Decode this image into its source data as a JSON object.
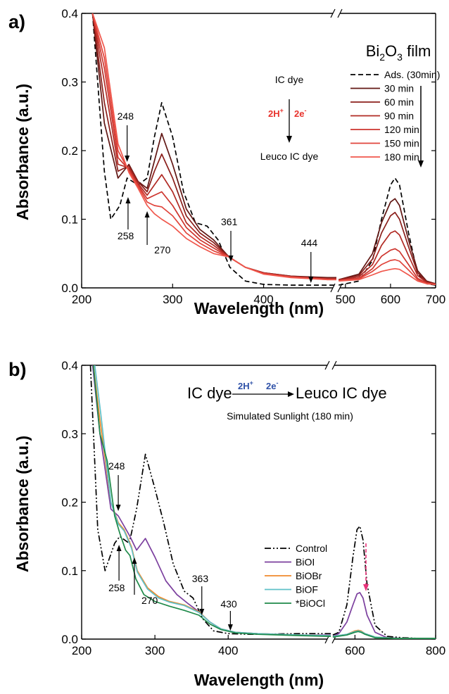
{
  "figure": [
    {
      "panel": "a)",
      "sample_label": {
        "main": "Bi",
        "sub1": "2",
        "mid": "O",
        "sub2": "3",
        "end": " film"
      },
      "reaction": {
        "top": "IC dye",
        "reagent_h": "2H",
        "reagent_h_sup": "+",
        "reagent_e": "2e",
        "reagent_e_sup": "-",
        "bottom": "Leuco IC dye",
        "color": "#e8322c"
      },
      "annotations": [
        {
          "text": "248",
          "x": 250
        },
        {
          "text": "258",
          "x": 251
        },
        {
          "text": "270",
          "x": 272
        },
        {
          "text": "361",
          "x": 364
        },
        {
          "text": "444",
          "x": 452
        }
      ]
    },
    {
      "panel": "b)",
      "reaction": {
        "left": "IC dye",
        "reagent_h": "2H",
        "reagent_h_sup": "+",
        "reagent_e": "2e",
        "reagent_e_sup": "-",
        "right": "Leuco IC dye",
        "color": "#2f52a8"
      },
      "condition": "Simulated Sunlight (180 min)",
      "annotations": [
        {
          "text": "248",
          "x": 250
        },
        {
          "text": "258",
          "x": 251
        },
        {
          "text": "270",
          "x": 272
        },
        {
          "text": "363",
          "x": 364
        },
        {
          "text": "430",
          "x": 403
        }
      ]
    }
  ],
  "chart_data": [
    {
      "type": "line",
      "xlabel": "Wavelength (nm)",
      "ylabel": "Absorbance (a.u.)",
      "xlim": [
        200,
        700
      ],
      "x_break": [
        480,
        480
      ],
      "ylim": [
        0,
        0.4
      ],
      "xticks": [
        "200",
        "300",
        "400",
        "500",
        "600",
        "700"
      ],
      "yticks": [
        "0.0",
        "0.1",
        "0.2",
        "0.3",
        "0.4"
      ],
      "legend": "top-right",
      "series": [
        {
          "name": "Ads. (30min)",
          "color": "#000000",
          "dash": "dashed",
          "x": [
            212,
            225,
            232,
            242,
            250,
            262,
            272,
            280,
            288,
            300,
            312,
            325,
            338,
            350,
            363,
            380,
            400,
            430,
            460,
            480,
            485,
            530,
            560,
            580,
            600,
            610,
            620,
            640,
            660,
            680,
            700
          ],
          "y": [
            0.4,
            0.17,
            0.1,
            0.12,
            0.16,
            0.15,
            0.16,
            0.22,
            0.27,
            0.22,
            0.14,
            0.095,
            0.09,
            0.07,
            0.03,
            0.01,
            0.005,
            0.004,
            0.004,
            0.004,
            0.004,
            0.01,
            0.04,
            0.1,
            0.15,
            0.16,
            0.15,
            0.08,
            0.02,
            0.006,
            0.004
          ]
        },
        {
          "name": "30 min",
          "color": "#611714",
          "x": [
            212,
            225,
            240,
            252,
            262,
            272,
            280,
            288,
            300,
            315,
            330,
            345,
            362,
            380,
            400,
            430,
            470,
            480,
            485,
            530,
            560,
            580,
            600,
            610,
            620,
            640,
            660,
            680,
            700
          ],
          "y": [
            0.4,
            0.24,
            0.16,
            0.18,
            0.155,
            0.145,
            0.185,
            0.225,
            0.18,
            0.115,
            0.085,
            0.07,
            0.045,
            0.03,
            0.022,
            0.017,
            0.015,
            0.015,
            0.012,
            0.02,
            0.05,
            0.095,
            0.125,
            0.13,
            0.12,
            0.07,
            0.025,
            0.01,
            0.006
          ]
        },
        {
          "name": "60 min",
          "color": "#8b1f1b",
          "x": [
            212,
            225,
            240,
            252,
            262,
            272,
            280,
            288,
            300,
            315,
            330,
            345,
            362,
            380,
            400,
            430,
            470,
            480,
            485,
            530,
            560,
            580,
            600,
            610,
            620,
            640,
            660,
            680,
            700
          ],
          "y": [
            0.4,
            0.27,
            0.17,
            0.178,
            0.155,
            0.14,
            0.17,
            0.195,
            0.16,
            0.105,
            0.08,
            0.066,
            0.045,
            0.03,
            0.022,
            0.017,
            0.014,
            0.014,
            0.012,
            0.018,
            0.042,
            0.08,
            0.105,
            0.11,
            0.1,
            0.06,
            0.022,
            0.009,
            0.006
          ]
        },
        {
          "name": "90 min",
          "color": "#b12a24",
          "x": [
            212,
            225,
            240,
            252,
            262,
            272,
            280,
            288,
            300,
            315,
            330,
            345,
            362,
            380,
            400,
            430,
            470,
            480,
            485,
            530,
            560,
            580,
            600,
            610,
            620,
            640,
            660,
            680,
            700
          ],
          "y": [
            0.4,
            0.3,
            0.18,
            0.175,
            0.152,
            0.135,
            0.15,
            0.165,
            0.14,
            0.095,
            0.075,
            0.062,
            0.045,
            0.03,
            0.022,
            0.016,
            0.013,
            0.013,
            0.011,
            0.016,
            0.034,
            0.062,
            0.08,
            0.083,
            0.077,
            0.047,
            0.018,
            0.008,
            0.005
          ]
        },
        {
          "name": "120 min",
          "color": "#cd352e",
          "x": [
            212,
            225,
            240,
            252,
            262,
            272,
            280,
            288,
            300,
            315,
            330,
            345,
            362,
            380,
            400,
            430,
            470,
            480,
            485,
            530,
            560,
            580,
            600,
            610,
            620,
            640,
            660,
            680,
            700
          ],
          "y": [
            0.4,
            0.32,
            0.19,
            0.172,
            0.15,
            0.13,
            0.135,
            0.14,
            0.12,
            0.088,
            0.07,
            0.058,
            0.045,
            0.03,
            0.021,
            0.016,
            0.013,
            0.013,
            0.011,
            0.014,
            0.028,
            0.046,
            0.055,
            0.057,
            0.053,
            0.034,
            0.014,
            0.007,
            0.005
          ]
        },
        {
          "name": "150 min",
          "color": "#e0443b",
          "x": [
            212,
            225,
            240,
            252,
            262,
            272,
            280,
            288,
            300,
            315,
            330,
            345,
            362,
            380,
            400,
            430,
            470,
            480,
            485,
            530,
            560,
            580,
            600,
            610,
            620,
            640,
            660,
            680,
            700
          ],
          "y": [
            0.4,
            0.335,
            0.2,
            0.17,
            0.148,
            0.125,
            0.12,
            0.118,
            0.105,
            0.08,
            0.065,
            0.054,
            0.045,
            0.03,
            0.021,
            0.016,
            0.012,
            0.012,
            0.011,
            0.013,
            0.024,
            0.034,
            0.04,
            0.041,
            0.039,
            0.026,
            0.012,
            0.006,
            0.005
          ]
        },
        {
          "name": "180 min",
          "color": "#f0574c",
          "x": [
            212,
            225,
            240,
            252,
            262,
            272,
            280,
            288,
            300,
            315,
            330,
            345,
            362,
            380,
            400,
            430,
            470,
            480,
            485,
            530,
            560,
            580,
            600,
            610,
            620,
            640,
            660,
            680,
            700
          ],
          "y": [
            0.4,
            0.35,
            0.21,
            0.168,
            0.145,
            0.12,
            0.108,
            0.1,
            0.09,
            0.072,
            0.06,
            0.05,
            0.045,
            0.03,
            0.02,
            0.015,
            0.012,
            0.012,
            0.01,
            0.012,
            0.019,
            0.024,
            0.027,
            0.028,
            0.027,
            0.019,
            0.01,
            0.006,
            0.005
          ]
        }
      ]
    },
    {
      "type": "line",
      "xlabel": "Wavelength (nm)",
      "ylabel": "Absorbance (a.u.)",
      "xlim": [
        200,
        800
      ],
      "x_break": [
        540,
        540
      ],
      "ylim": [
        0,
        0.4
      ],
      "xticks": [
        "200",
        "300",
        "400",
        "600",
        "800"
      ],
      "yticks": [
        "0.0",
        "0.1",
        "0.2",
        "0.3",
        "0.4"
      ],
      "legend": "bottom-right",
      "series": [
        {
          "name": "Control",
          "color": "#000000",
          "dash": "dashdotdot",
          "x": [
            212,
            222,
            232,
            245,
            252,
            265,
            275,
            287,
            300,
            312,
            325,
            340,
            352,
            365,
            380,
            400,
            430,
            500,
            540,
            545,
            560,
            580,
            595,
            605,
            612,
            620,
            630,
            650,
            680,
            720,
            760,
            800
          ],
          "y": [
            0.4,
            0.16,
            0.1,
            0.14,
            0.15,
            0.14,
            0.19,
            0.27,
            0.22,
            0.17,
            0.11,
            0.07,
            0.06,
            0.03,
            0.012,
            0.008,
            0.007,
            0.008,
            0.008,
            0.006,
            0.01,
            0.05,
            0.12,
            0.16,
            0.165,
            0.145,
            0.08,
            0.02,
            0.004,
            0.002,
            0.001,
            0.001
          ]
        },
        {
          "name": "BiOI",
          "color": "#7b3f9e",
          "x": [
            215,
            225,
            240,
            250,
            258,
            266,
            275,
            287,
            300,
            315,
            330,
            345,
            360,
            375,
            390,
            410,
            440,
            500,
            540,
            545,
            560,
            580,
            595,
            605,
            612,
            620,
            630,
            650,
            680,
            720,
            760,
            800
          ],
          "y": [
            0.4,
            0.3,
            0.19,
            0.18,
            0.165,
            0.15,
            0.13,
            0.147,
            0.12,
            0.085,
            0.065,
            0.052,
            0.04,
            0.025,
            0.015,
            0.01,
            0.008,
            0.006,
            0.006,
            0.004,
            0.008,
            0.025,
            0.05,
            0.066,
            0.068,
            0.06,
            0.035,
            0.01,
            0.002,
            0.001,
            0.001,
            0.001
          ]
        },
        {
          "name": "BiOBr",
          "color": "#f08a2c",
          "x": [
            216,
            225,
            240,
            250,
            258,
            268,
            276,
            290,
            305,
            320,
            340,
            360,
            375,
            390,
            410,
            440,
            500,
            540,
            545,
            580,
            600,
            608,
            615,
            625,
            650,
            700,
            800
          ],
          "y": [
            0.4,
            0.32,
            0.2,
            0.17,
            0.16,
            0.135,
            0.1,
            0.075,
            0.062,
            0.055,
            0.05,
            0.04,
            0.025,
            0.015,
            0.01,
            0.008,
            0.006,
            0.005,
            0.004,
            0.007,
            0.012,
            0.013,
            0.012,
            0.008,
            0.003,
            0.001,
            0.001
          ]
        },
        {
          "name": "BiOF",
          "color": "#5fc0c8",
          "x": [
            218,
            226,
            240,
            250,
            258,
            268,
            276,
            290,
            305,
            320,
            340,
            360,
            375,
            390,
            410,
            440,
            500,
            540,
            545,
            580,
            600,
            608,
            615,
            625,
            650,
            700,
            800
          ],
          "y": [
            0.4,
            0.33,
            0.2,
            0.168,
            0.158,
            0.133,
            0.098,
            0.073,
            0.06,
            0.054,
            0.049,
            0.039,
            0.025,
            0.015,
            0.01,
            0.008,
            0.006,
            0.005,
            0.004,
            0.007,
            0.011,
            0.012,
            0.011,
            0.008,
            0.003,
            0.001,
            0.001
          ]
        },
        {
          "name": "*BiOCl",
          "color": "#1f8a4a",
          "x": [
            216,
            225,
            235,
            245,
            252,
            260,
            266,
            274,
            285,
            300,
            320,
            340,
            360,
            375,
            390,
            410,
            440,
            500,
            540,
            545,
            580,
            600,
            608,
            615,
            625,
            650,
            700,
            800
          ],
          "y": [
            0.4,
            0.3,
            0.26,
            0.18,
            0.155,
            0.13,
            0.122,
            0.088,
            0.065,
            0.055,
            0.048,
            0.042,
            0.035,
            0.022,
            0.014,
            0.009,
            0.007,
            0.005,
            0.004,
            0.003,
            0.006,
            0.01,
            0.011,
            0.01,
            0.007,
            0.002,
            0.001,
            0.001
          ]
        }
      ]
    }
  ]
}
